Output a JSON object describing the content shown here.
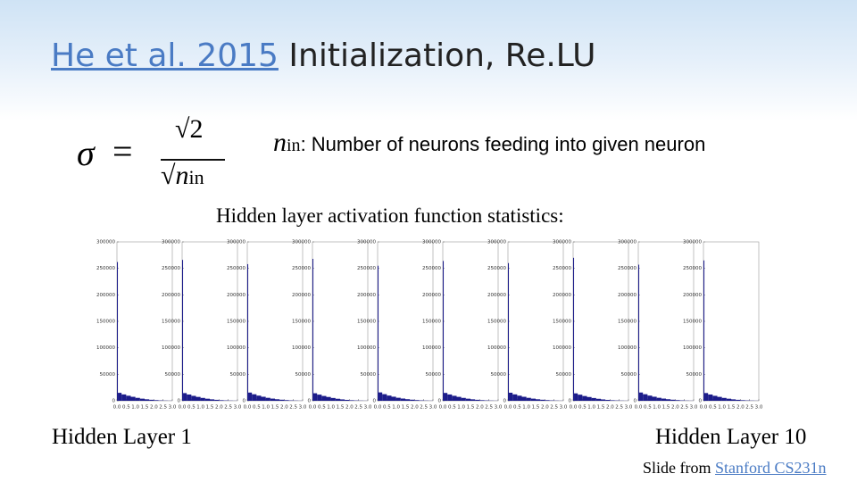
{
  "slide": {
    "title_link": "He et al. 2015",
    "title_rest": "Initialization, Re.LU",
    "formula": {
      "sigma": "σ",
      "equals": "=",
      "numerator": "√2",
      "root": "√",
      "var": "n",
      "sub": "in"
    },
    "definition": {
      "var": "n",
      "sub": "in",
      "text": ": Number of neurons feeding into given neuron"
    },
    "subtitle": "Hidden layer activation function statistics:",
    "first_label": "Hidden Layer 1",
    "last_label": "Hidden Layer 10",
    "credit": "Slide from",
    "credit_link": "Stanford CS231n"
  },
  "chart_data": [
    {
      "type": "histogram",
      "color": "#1c1c8a",
      "bins": [
        0,
        0.05,
        0.25,
        0.5,
        0.75,
        1,
        1.25,
        1.5,
        1.75,
        2,
        2.25,
        2.5,
        2.75,
        3
      ],
      "counts": [
        262000,
        15000,
        12000,
        9500,
        7500,
        5500,
        4000,
        2800,
        1900,
        1200,
        700,
        400,
        200
      ],
      "xlim": [
        0,
        3
      ],
      "ylim": [
        0,
        300000
      ],
      "xticks": [
        {
          "value": 0,
          "label": "0.0"
        },
        {
          "value": 0.5,
          "label": "0.5"
        },
        {
          "value": 1,
          "label": "1.0"
        },
        {
          "value": 1.5,
          "label": "1.5"
        },
        {
          "value": 2,
          "label": "2.0"
        },
        {
          "value": 2.5,
          "label": "2.5"
        },
        {
          "value": 3,
          "label": "3.0"
        }
      ],
      "yticks": [
        0,
        50000,
        100000,
        150000,
        200000,
        250000,
        300000
      ]
    },
    {
      "type": "histogram",
      "color": "#1c1c8a",
      "bins": [
        0,
        0.05,
        0.25,
        0.5,
        0.75,
        1,
        1.25,
        1.5,
        1.75,
        2,
        2.25,
        2.5,
        2.75,
        3
      ],
      "counts": [
        266000,
        14500,
        11800,
        9300,
        7300,
        5400,
        3900,
        2700,
        1800,
        1100,
        650,
        380,
        190
      ],
      "xlim": [
        0,
        3
      ],
      "ylim": [
        0,
        300000
      ],
      "xticks": [
        {
          "value": 0,
          "label": "0.0"
        },
        {
          "value": 0.5,
          "label": "0.5"
        },
        {
          "value": 1,
          "label": "1.0"
        },
        {
          "value": 1.5,
          "label": "1.5"
        },
        {
          "value": 2,
          "label": "2.0"
        },
        {
          "value": 2.5,
          "label": "2.5"
        },
        {
          "value": 3,
          "label": "3.0"
        }
      ],
      "yticks": [
        0,
        50000,
        100000,
        150000,
        200000,
        250000,
        300000
      ]
    },
    {
      "type": "histogram",
      "color": "#1c1c8a",
      "bins": [
        0,
        0.05,
        0.25,
        0.5,
        0.75,
        1,
        1.25,
        1.5,
        1.75,
        2,
        2.25,
        2.5,
        2.75,
        3
      ],
      "counts": [
        258000,
        15500,
        12300,
        9700,
        7600,
        5600,
        4100,
        2900,
        2000,
        1250,
        720,
        420,
        210
      ],
      "xlim": [
        0,
        3
      ],
      "ylim": [
        0,
        300000
      ],
      "xticks": [
        {
          "value": 0,
          "label": "0.0"
        },
        {
          "value": 0.5,
          "label": "0.5"
        },
        {
          "value": 1,
          "label": "1.0"
        },
        {
          "value": 1.5,
          "label": "1.5"
        },
        {
          "value": 2,
          "label": "2.0"
        },
        {
          "value": 2.5,
          "label": "2.5"
        },
        {
          "value": 3,
          "label": "3.0"
        }
      ],
      "yticks": [
        0,
        50000,
        100000,
        150000,
        200000,
        250000,
        300000
      ]
    },
    {
      "type": "histogram",
      "color": "#1c1c8a",
      "bins": [
        0,
        0.05,
        0.25,
        0.5,
        0.75,
        1,
        1.25,
        1.5,
        1.75,
        2,
        2.25,
        2.5,
        2.75,
        3
      ],
      "counts": [
        268000,
        14200,
        11600,
        9100,
        7200,
        5300,
        3800,
        2600,
        1700,
        1050,
        620,
        360,
        180
      ],
      "xlim": [
        0,
        3
      ],
      "ylim": [
        0,
        300000
      ],
      "xticks": [
        {
          "value": 0,
          "label": "0.0"
        },
        {
          "value": 0.5,
          "label": "0.5"
        },
        {
          "value": 1,
          "label": "1.0"
        },
        {
          "value": 1.5,
          "label": "1.5"
        },
        {
          "value": 2,
          "label": "2.0"
        },
        {
          "value": 2.5,
          "label": "2.5"
        },
        {
          "value": 3,
          "label": "3.0"
        }
      ],
      "yticks": [
        0,
        50000,
        100000,
        150000,
        200000,
        250000,
        300000
      ]
    },
    {
      "type": "histogram",
      "color": "#1c1c8a",
      "bins": [
        0,
        0.05,
        0.25,
        0.5,
        0.75,
        1,
        1.25,
        1.5,
        1.75,
        2,
        2.25,
        2.5,
        2.75,
        3
      ],
      "counts": [
        255000,
        15800,
        12500,
        9800,
        7700,
        5700,
        4200,
        3000,
        2050,
        1300,
        750,
        430,
        220
      ],
      "xlim": [
        0,
        3
      ],
      "ylim": [
        0,
        300000
      ],
      "xticks": [
        {
          "value": 0,
          "label": "0.0"
        },
        {
          "value": 0.5,
          "label": "0.5"
        },
        {
          "value": 1,
          "label": "1.0"
        },
        {
          "value": 1.5,
          "label": "1.5"
        },
        {
          "value": 2,
          "label": "2.0"
        },
        {
          "value": 2.5,
          "label": "2.5"
        },
        {
          "value": 3,
          "label": "3.0"
        }
      ],
      "yticks": [
        0,
        50000,
        100000,
        150000,
        200000,
        250000,
        300000
      ]
    },
    {
      "type": "histogram",
      "color": "#1c1c8a",
      "bins": [
        0,
        0.05,
        0.25,
        0.5,
        0.75,
        1,
        1.25,
        1.5,
        1.75,
        2,
        2.25,
        2.5,
        2.75,
        3
      ],
      "counts": [
        264000,
        14800,
        11900,
        9400,
        7400,
        5450,
        3950,
        2750,
        1850,
        1150,
        680,
        390,
        195
      ],
      "xlim": [
        0,
        3
      ],
      "ylim": [
        0,
        300000
      ],
      "xticks": [
        {
          "value": 0,
          "label": "0.0"
        },
        {
          "value": 0.5,
          "label": "0.5"
        },
        {
          "value": 1,
          "label": "1.0"
        },
        {
          "value": 1.5,
          "label": "1.5"
        },
        {
          "value": 2,
          "label": "2.0"
        },
        {
          "value": 2.5,
          "label": "2.5"
        },
        {
          "value": 3,
          "label": "3.0"
        }
      ],
      "yticks": [
        0,
        50000,
        100000,
        150000,
        200000,
        250000,
        300000
      ]
    },
    {
      "type": "histogram",
      "color": "#1c1c8a",
      "bins": [
        0,
        0.05,
        0.25,
        0.5,
        0.75,
        1,
        1.25,
        1.5,
        1.75,
        2,
        2.25,
        2.5,
        2.75,
        3
      ],
      "counts": [
        260000,
        15200,
        12100,
        9600,
        7550,
        5550,
        4050,
        2850,
        1950,
        1220,
        710,
        410,
        205
      ],
      "xlim": [
        0,
        3
      ],
      "ylim": [
        0,
        300000
      ],
      "xticks": [
        {
          "value": 0,
          "label": "0.0"
        },
        {
          "value": 0.5,
          "label": "0.5"
        },
        {
          "value": 1,
          "label": "1.0"
        },
        {
          "value": 1.5,
          "label": "1.5"
        },
        {
          "value": 2,
          "label": "2.0"
        },
        {
          "value": 2.5,
          "label": "2.5"
        },
        {
          "value": 3,
          "label": "3.0"
        }
      ],
      "yticks": [
        0,
        50000,
        100000,
        150000,
        200000,
        250000,
        300000
      ]
    },
    {
      "type": "histogram",
      "color": "#1c1c8a",
      "bins": [
        0,
        0.05,
        0.25,
        0.5,
        0.75,
        1,
        1.25,
        1.5,
        1.75,
        2,
        2.25,
        2.5,
        2.75,
        3
      ],
      "counts": [
        270000,
        14000,
        11500,
        9000,
        7100,
        5250,
        3750,
        2550,
        1650,
        1000,
        600,
        350,
        170
      ],
      "xlim": [
        0,
        3
      ],
      "ylim": [
        0,
        300000
      ],
      "xticks": [
        {
          "value": 0,
          "label": "0.0"
        },
        {
          "value": 0.5,
          "label": "0.5"
        },
        {
          "value": 1,
          "label": "1.0"
        },
        {
          "value": 1.5,
          "label": "1.5"
        },
        {
          "value": 2,
          "label": "2.0"
        },
        {
          "value": 2.5,
          "label": "2.5"
        },
        {
          "value": 3,
          "label": "3.0"
        }
      ],
      "yticks": [
        0,
        50000,
        100000,
        150000,
        200000,
        250000,
        300000
      ]
    },
    {
      "type": "histogram",
      "color": "#1c1c8a",
      "bins": [
        0,
        0.05,
        0.25,
        0.5,
        0.75,
        1,
        1.25,
        1.5,
        1.75,
        2,
        2.25,
        2.5,
        2.75,
        3
      ],
      "counts": [
        257000,
        15600,
        12400,
        9750,
        7650,
        5650,
        4150,
        2950,
        2020,
        1280,
        740,
        425,
        215
      ],
      "xlim": [
        0,
        3
      ],
      "ylim": [
        0,
        300000
      ],
      "xticks": [
        {
          "value": 0,
          "label": "0.0"
        },
        {
          "value": 0.5,
          "label": "0.5"
        },
        {
          "value": 1,
          "label": "1.0"
        },
        {
          "value": 1.5,
          "label": "1.5"
        },
        {
          "value": 2,
          "label": "2.0"
        },
        {
          "value": 2.5,
          "label": "2.5"
        },
        {
          "value": 3,
          "label": "3.0"
        }
      ],
      "yticks": [
        0,
        50000,
        100000,
        150000,
        200000,
        250000,
        300000
      ]
    },
    {
      "type": "histogram",
      "color": "#1c1c8a",
      "bins": [
        0,
        0.05,
        0.25,
        0.5,
        0.75,
        1,
        1.25,
        1.5,
        1.75,
        2,
        2.25,
        2.5,
        2.75,
        3
      ],
      "counts": [
        265000,
        14600,
        11850,
        9350,
        7350,
        5420,
        3920,
        2720,
        1820,
        1120,
        660,
        385,
        192
      ],
      "xlim": [
        0,
        3
      ],
      "ylim": [
        0,
        300000
      ],
      "xticks": [
        {
          "value": 0,
          "label": "0.0"
        },
        {
          "value": 0.5,
          "label": "0.5"
        },
        {
          "value": 1,
          "label": "1.0"
        },
        {
          "value": 1.5,
          "label": "1.5"
        },
        {
          "value": 2,
          "label": "2.0"
        },
        {
          "value": 2.5,
          "label": "2.5"
        },
        {
          "value": 3,
          "label": "3.0"
        }
      ],
      "yticks": [
        0,
        50000,
        100000,
        150000,
        200000,
        250000,
        300000
      ]
    }
  ]
}
